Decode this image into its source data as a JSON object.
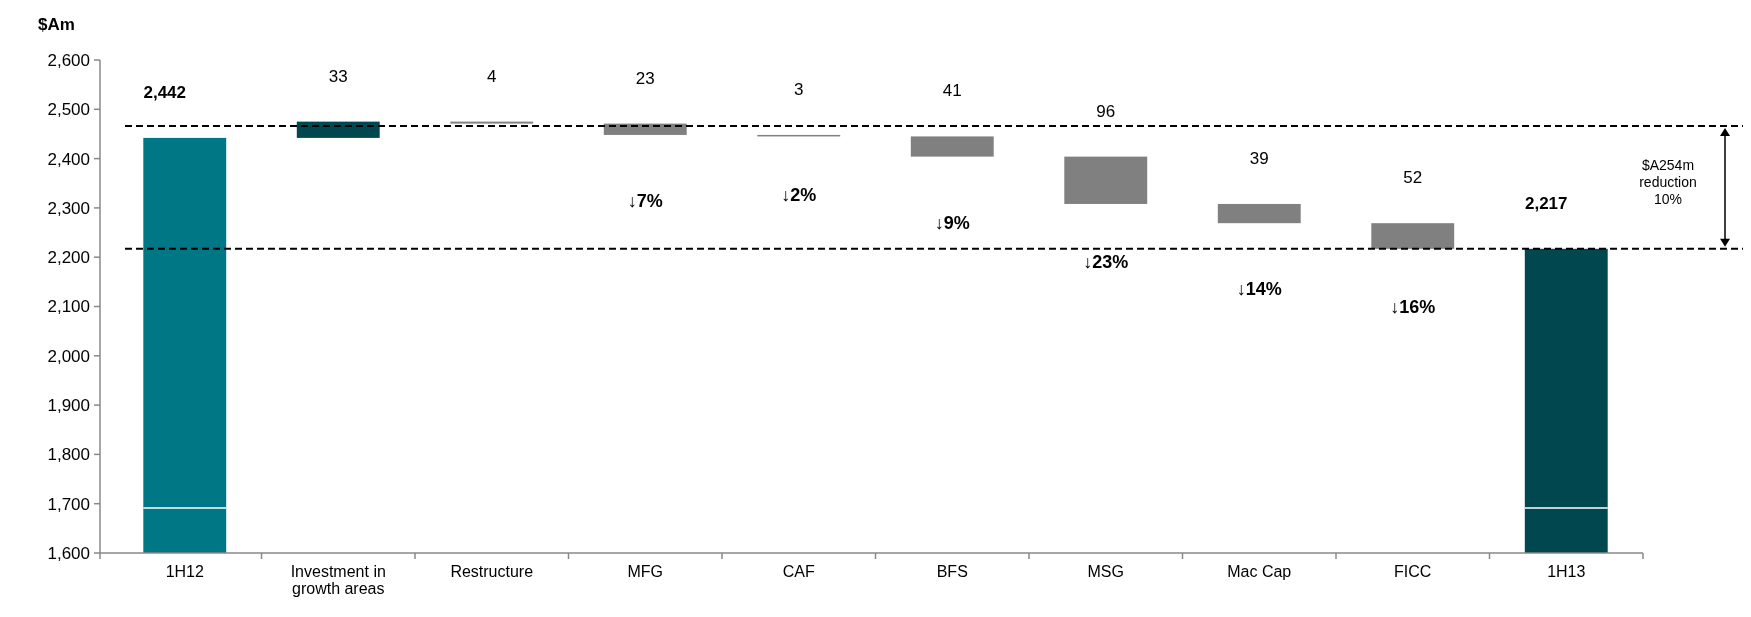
{
  "chart_data": {
    "type": "bar",
    "ylabel": "$Am",
    "categories": [
      "1H12",
      "Investment in growth areas",
      "Restructure",
      "MFG",
      "CAF",
      "BFS",
      "MSG",
      "Mac Cap",
      "FICC",
      "1H13"
    ],
    "values": [
      2442,
      33,
      -4,
      -23,
      -3,
      -41,
      -96,
      -39,
      -52,
      2217
    ],
    "base": [
      null,
      2442,
      2475,
      2471,
      2448,
      2445,
      2404,
      2308,
      2269,
      null
    ],
    "colors": [
      "#007785",
      "#00474f",
      "#808080",
      "#808080",
      "#808080",
      "#808080",
      "#808080",
      "#808080",
      "#808080",
      "#00474f"
    ],
    "value_labels": [
      "2,442",
      "33",
      "4",
      "23",
      "3",
      "41",
      "96",
      "39",
      "52",
      "2,217"
    ],
    "ylim": [
      1600,
      2600
    ],
    "yticks": [
      {
        "value": 1600,
        "label": "1,600"
      },
      {
        "value": 1700,
        "label": "1,700"
      },
      {
        "value": 1800,
        "label": "1,800"
      },
      {
        "value": 1900,
        "label": "1,900"
      },
      {
        "value": 2000,
        "label": "2,000"
      },
      {
        "value": 2100,
        "label": "2,100"
      },
      {
        "value": 2200,
        "label": "2,200"
      },
      {
        "value": 2300,
        "label": "2,300"
      },
      {
        "value": 2400,
        "label": "2,400"
      },
      {
        "value": 2500,
        "label": "2,500"
      },
      {
        "value": 2600,
        "label": "2,600"
      }
    ],
    "ref_lines": [
      {
        "axis": "y",
        "value": 2466,
        "line_style": "dashed",
        "color": "#000000"
      },
      {
        "axis": "y",
        "value": 2217,
        "line_style": "dashed",
        "color": "#000000"
      }
    ],
    "annotations": [
      "↓7%",
      "↓2%",
      "↓9%",
      "↓23%",
      "↓14%",
      "↓16%",
      "$A254m reduction 10%"
    ],
    "grid": false
  }
}
